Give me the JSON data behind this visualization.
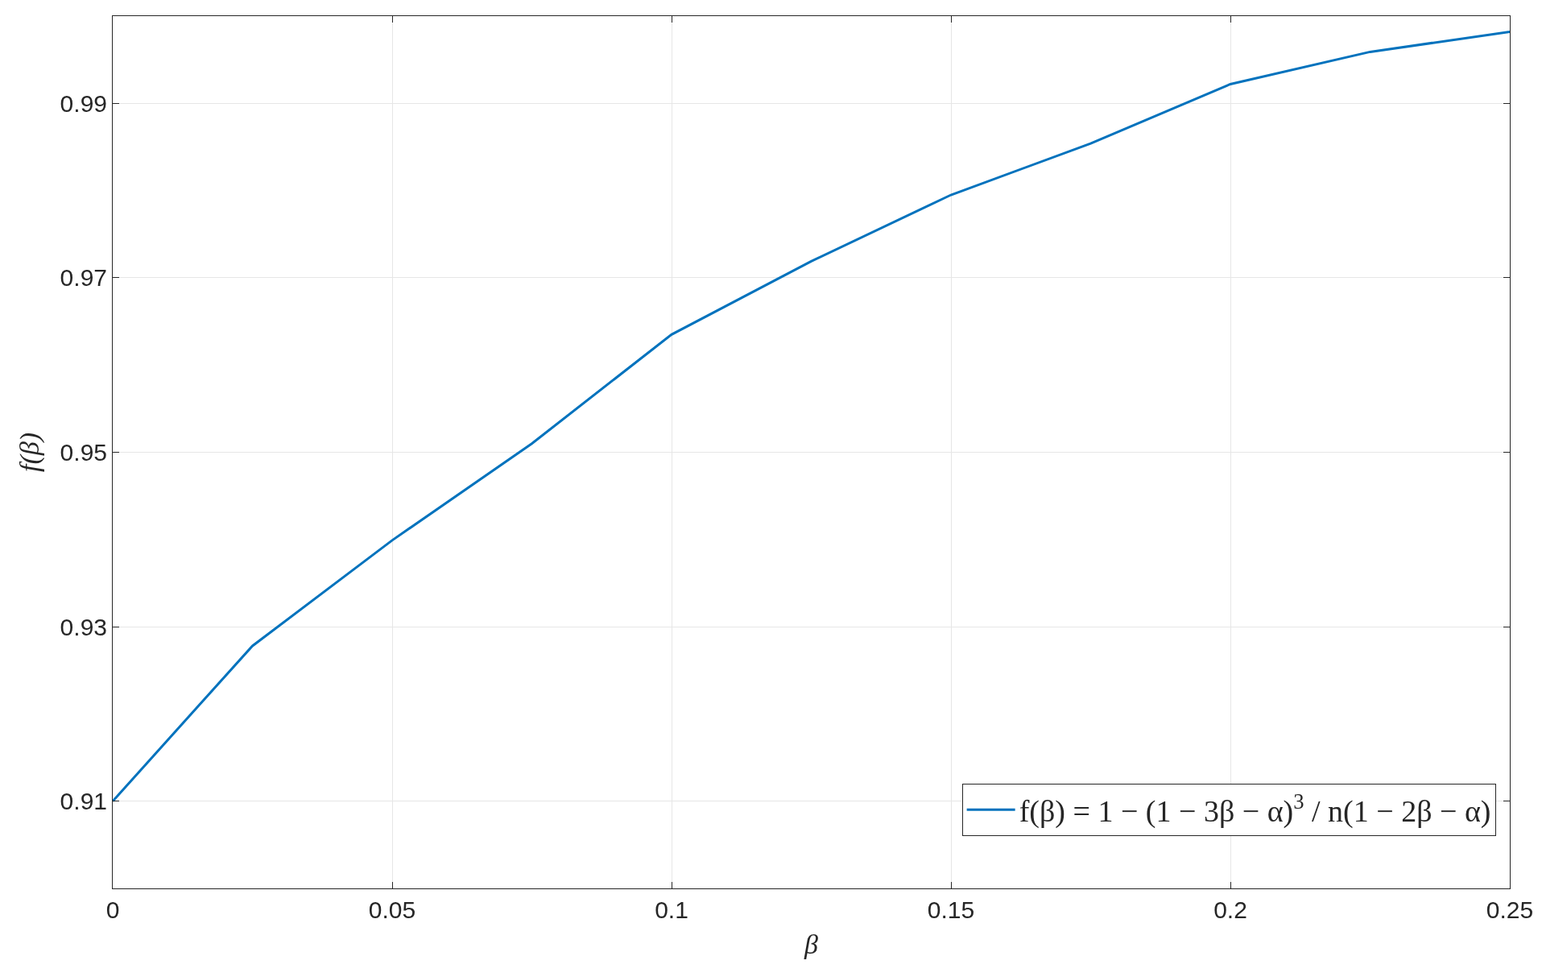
{
  "chart_data": {
    "type": "line",
    "xlabel": "β",
    "ylabel": "f(β)",
    "x": [
      0,
      0.025,
      0.05,
      0.075,
      0.1,
      0.125,
      0.15,
      0.175,
      0.2,
      0.225,
      0.25
    ],
    "series": [
      {
        "name": "f(β) = 1 − (1 − 3β − α)$^{3}$ / n(1 − 2β − α)",
        "color": "#0072bd",
        "values": [
          0.91,
          0.9278,
          0.9399,
          0.951,
          0.9635,
          0.9719,
          0.9795,
          0.9854,
          0.9922,
          0.9959,
          0.9982
        ]
      }
    ],
    "xlim": [
      0,
      0.25
    ],
    "xticks": [
      0,
      0.05,
      0.1,
      0.15,
      0.2,
      0.25
    ],
    "ylim": [
      0.9,
      1.0
    ],
    "yticks": [
      0.91,
      0.93,
      0.95,
      0.97,
      0.99
    ],
    "grid": true,
    "legend": "bottom right",
    "marker": "none",
    "line_style": "solid"
  }
}
